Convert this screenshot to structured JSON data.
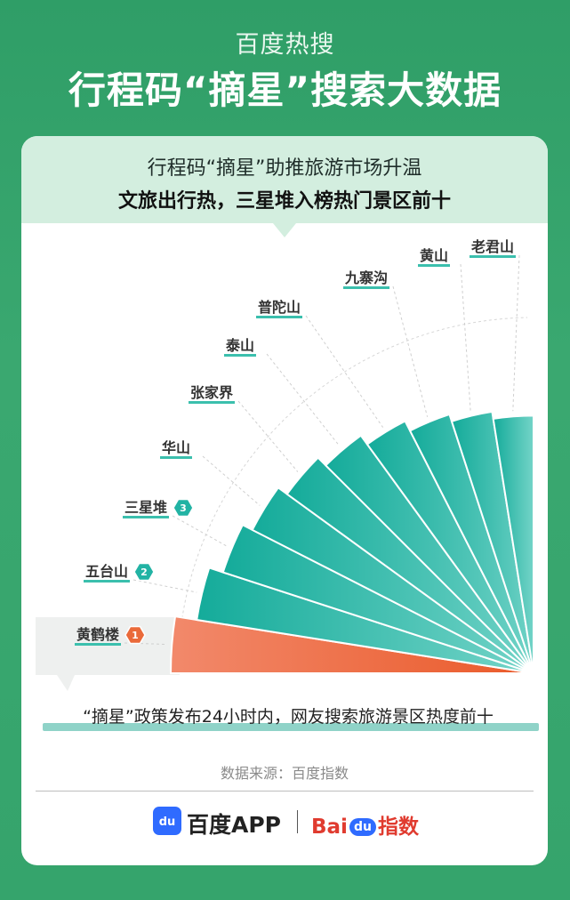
{
  "header": {
    "subtitle": "百度热搜",
    "title": "行程码“摘星”搜索大数据"
  },
  "card": {
    "line1": "行程码“摘星”助推旅游市场升温",
    "line2": "文旅出行热，三星堆入榜热门景区前十"
  },
  "chart_data": {
    "type": "bar",
    "categories": [
      "黄鹤楼",
      "五台山",
      "三星堆",
      "华山",
      "张家界",
      "泰山",
      "普陀山",
      "九寨沟",
      "黄山",
      "老君山"
    ],
    "values": [
      100,
      94,
      90,
      87,
      84,
      81,
      78,
      75,
      73,
      71
    ],
    "ranks": [
      "1",
      "2",
      "3",
      "",
      "",
      "",
      "",
      "",
      "",
      ""
    ],
    "colors": {
      "top": "#ea5a2a",
      "top_light": "#f2896b",
      "rest_dark": "#14ab9a",
      "rest_light": "#74d4c8",
      "rank_1": "#ea6a3a",
      "rank_other": "#22b3a4"
    },
    "caption": "“摘星”政策发布24小时内，网友搜索旅游景区热度前十"
  },
  "footer": {
    "source": "数据来源：百度指数",
    "logo_icon_text": "du",
    "baidu_app": "百度APP",
    "index_bai": "Bai",
    "index_du": "du",
    "index_zs": "指数"
  }
}
